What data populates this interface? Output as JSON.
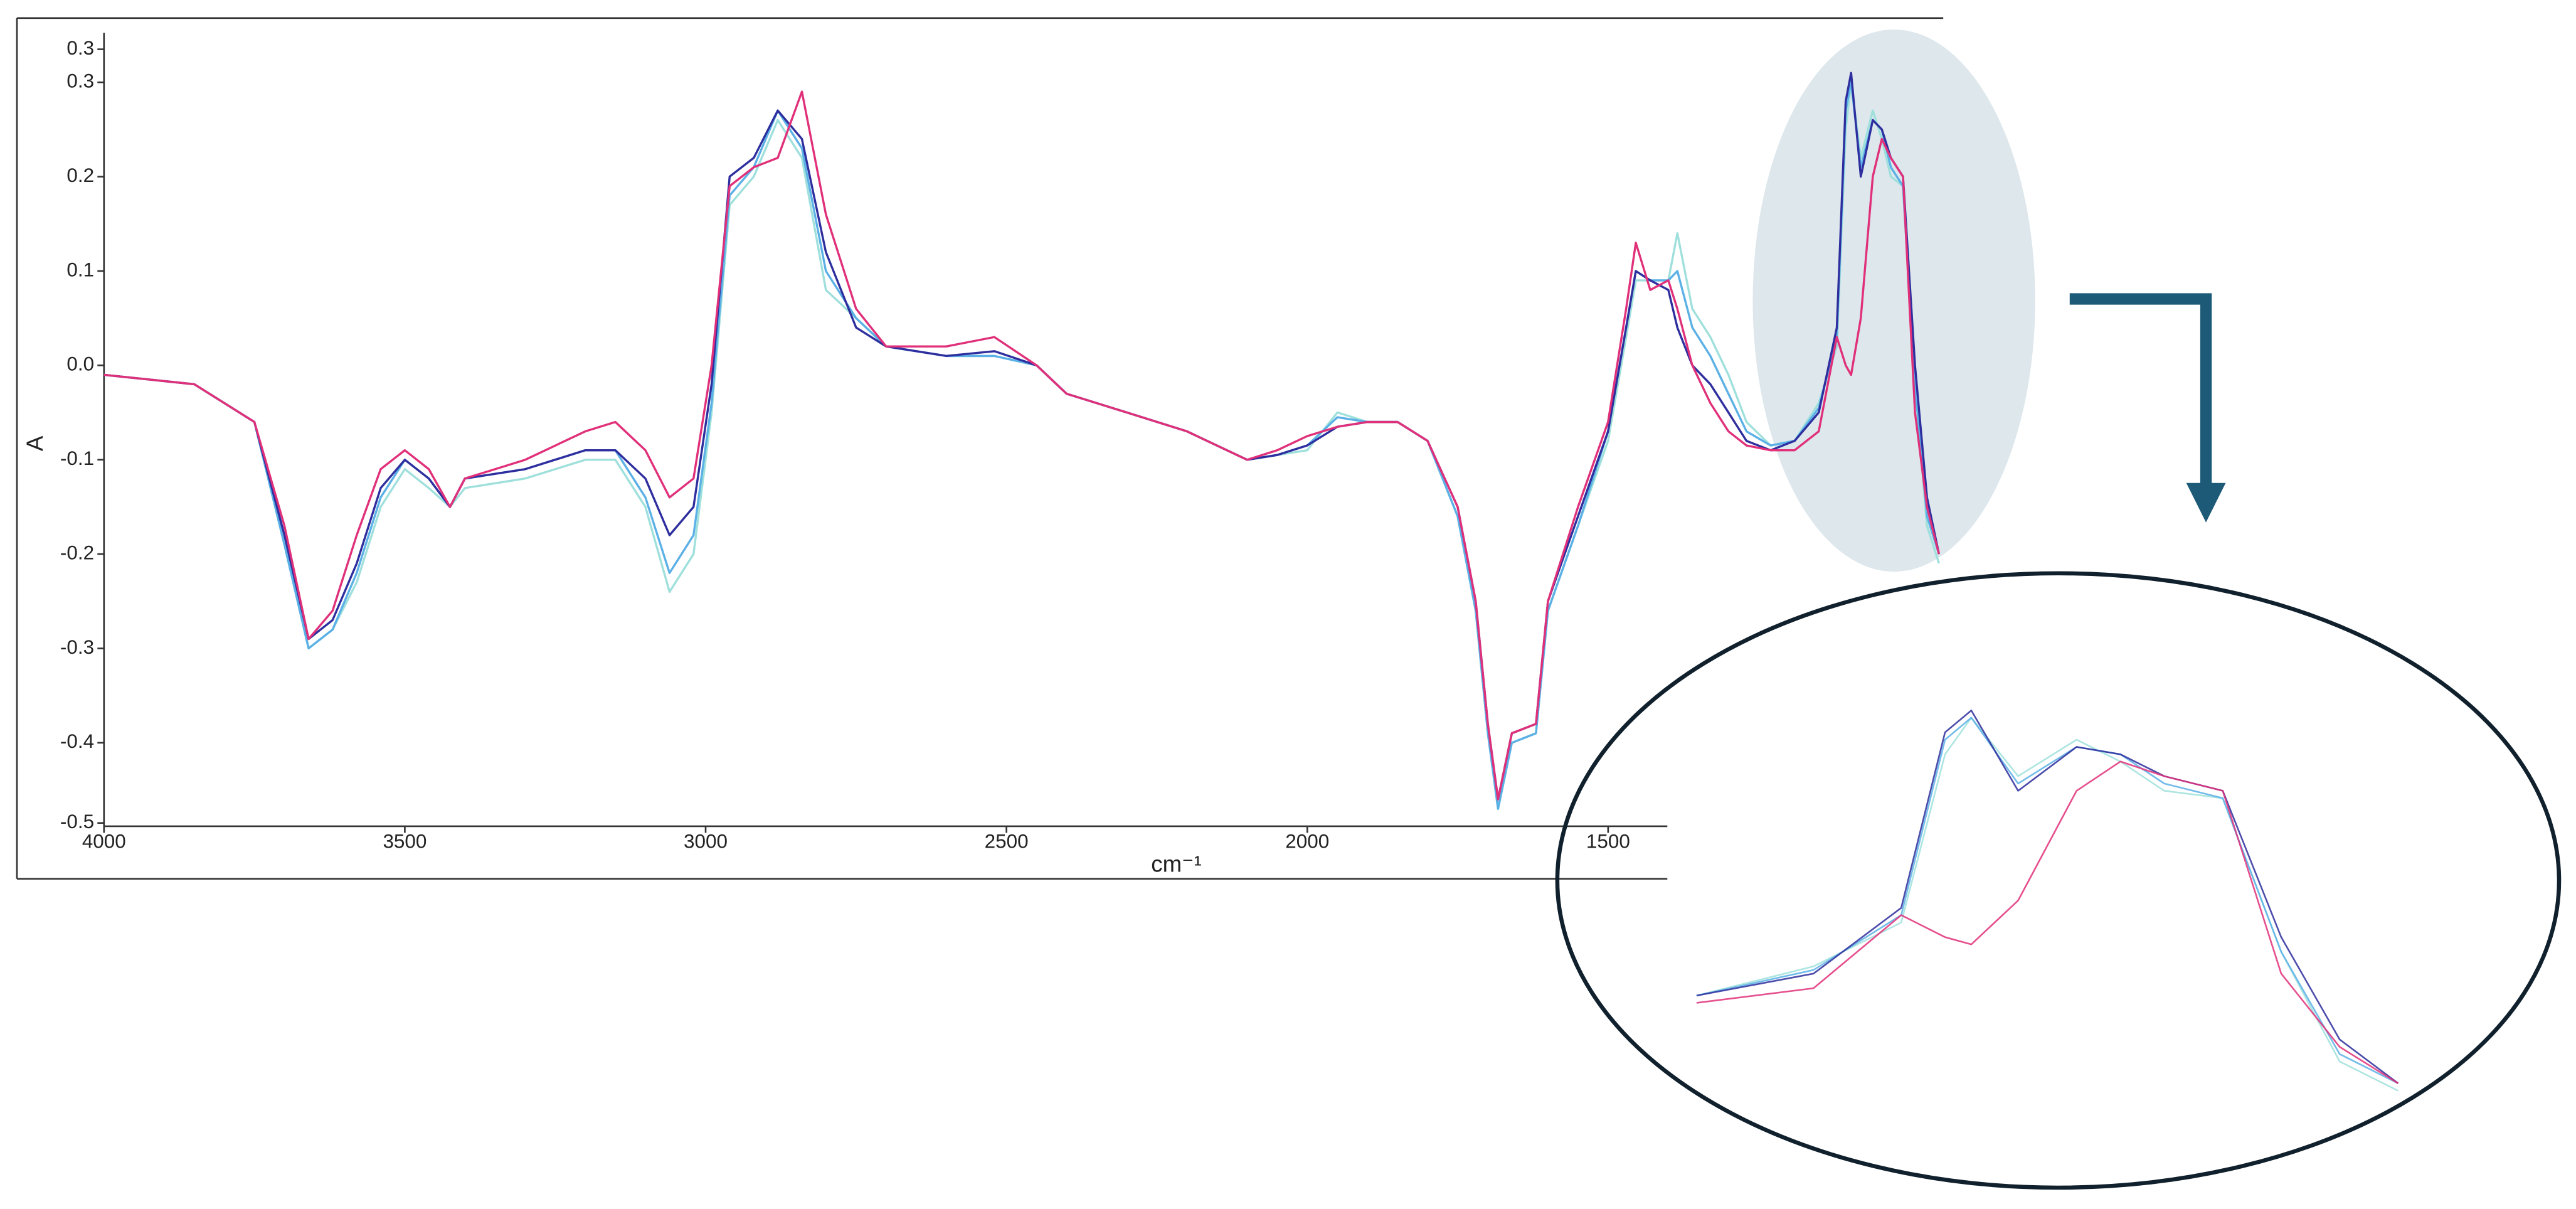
{
  "chart_data": {
    "type": "line",
    "y_label": "A",
    "x_label": "cm⁻¹",
    "xlim": [
      4000,
      943
    ],
    "xticks": [
      4000,
      3500,
      3000,
      2500,
      2000,
      1500
    ],
    "ylim": [
      -0.485,
      0.335
    ],
    "yticks": [
      {
        "value": 0.335,
        "label": "0.3"
      },
      0.3,
      0.2,
      0.1,
      {
        "value": 0,
        "label": "0.0"
      },
      -0.1,
      -0.2,
      -0.3,
      -0.4,
      {
        "value": -0.485,
        "label": "-0.5"
      }
    ],
    "x": [
      4000,
      3850,
      3750,
      3700,
      3660,
      3620,
      3580,
      3540,
      3500,
      3460,
      3425,
      3400,
      3300,
      3200,
      3150,
      3100,
      3060,
      3020,
      2990,
      2960,
      2920,
      2880,
      2840,
      2800,
      2750,
      2700,
      2600,
      2520,
      2450,
      2400,
      2300,
      2200,
      2100,
      2050,
      2000,
      1950,
      1900,
      1850,
      1800,
      1750,
      1720,
      1700,
      1683,
      1660,
      1620,
      1600,
      1550,
      1500,
      1470,
      1454,
      1430,
      1400,
      1385,
      1360,
      1330,
      1300,
      1270,
      1230,
      1190,
      1150,
      1120,
      1105,
      1096,
      1080,
      1060,
      1045,
      1030,
      1010,
      990,
      970,
      950
    ],
    "series": [
      {
        "color": "#9fe0dc",
        "values": [
          -0.01,
          -0.02,
          -0.06,
          -0.19,
          -0.3,
          -0.28,
          -0.23,
          -0.15,
          -0.11,
          -0.13,
          -0.15,
          -0.13,
          -0.12,
          -0.1,
          -0.1,
          -0.15,
          -0.24,
          -0.2,
          -0.05,
          0.17,
          0.2,
          0.26,
          0.22,
          0.08,
          0.05,
          0.02,
          0.01,
          0.01,
          0.0,
          -0.03,
          -0.05,
          -0.07,
          -0.1,
          -0.095,
          -0.09,
          -0.05,
          -0.06,
          -0.06,
          -0.08,
          -0.16,
          -0.26,
          -0.39,
          -0.47,
          -0.4,
          -0.39,
          -0.26,
          -0.17,
          -0.08,
          0.03,
          0.09,
          0.09,
          0.09,
          0.14,
          0.06,
          0.03,
          -0.01,
          -0.06,
          -0.085,
          -0.08,
          -0.04,
          0.02,
          0.25,
          0.3,
          0.22,
          0.27,
          0.24,
          0.2,
          0.19,
          -0.02,
          -0.17,
          -0.21
        ]
      },
      {
        "color": "#5bb0e6",
        "values": [
          -0.01,
          -0.02,
          -0.06,
          -0.19,
          -0.3,
          -0.28,
          -0.22,
          -0.14,
          -0.1,
          -0.12,
          -0.15,
          -0.12,
          -0.11,
          -0.09,
          -0.09,
          -0.14,
          -0.22,
          -0.18,
          -0.04,
          0.18,
          0.21,
          0.27,
          0.23,
          0.1,
          0.05,
          0.02,
          0.01,
          0.01,
          0.0,
          -0.03,
          -0.05,
          -0.07,
          -0.1,
          -0.095,
          -0.085,
          -0.055,
          -0.06,
          -0.06,
          -0.08,
          -0.16,
          -0.26,
          -0.39,
          -0.47,
          -0.4,
          -0.39,
          -0.26,
          -0.17,
          -0.07,
          0.04,
          0.1,
          0.09,
          0.09,
          0.1,
          0.04,
          0.01,
          -0.03,
          -0.07,
          -0.085,
          -0.08,
          -0.045,
          0.03,
          0.27,
          0.3,
          0.21,
          0.26,
          0.25,
          0.21,
          0.19,
          -0.02,
          -0.16,
          -0.2
        ]
      },
      {
        "color": "#2e2e9e",
        "values": [
          -0.01,
          -0.02,
          -0.06,
          -0.18,
          -0.29,
          -0.27,
          -0.21,
          -0.13,
          -0.1,
          -0.12,
          -0.15,
          -0.12,
          -0.11,
          -0.09,
          -0.09,
          -0.12,
          -0.18,
          -0.15,
          -0.02,
          0.2,
          0.22,
          0.27,
          0.24,
          0.12,
          0.04,
          0.02,
          0.01,
          0.015,
          0.0,
          -0.03,
          -0.05,
          -0.07,
          -0.1,
          -0.095,
          -0.085,
          -0.065,
          -0.06,
          -0.06,
          -0.08,
          -0.15,
          -0.25,
          -0.38,
          -0.46,
          -0.39,
          -0.38,
          -0.25,
          -0.16,
          -0.07,
          0.04,
          0.1,
          0.09,
          0.08,
          0.04,
          0.0,
          -0.02,
          -0.05,
          -0.08,
          -0.09,
          -0.08,
          -0.05,
          0.04,
          0.28,
          0.31,
          0.2,
          0.26,
          0.25,
          0.22,
          0.2,
          0.0,
          -0.14,
          -0.2
        ]
      },
      {
        "color": "#e0307a",
        "values": [
          -0.01,
          -0.02,
          -0.06,
          -0.17,
          -0.29,
          -0.26,
          -0.18,
          -0.11,
          -0.09,
          -0.11,
          -0.15,
          -0.12,
          -0.1,
          -0.07,
          -0.06,
          -0.09,
          -0.14,
          -0.12,
          0.0,
          0.19,
          0.21,
          0.22,
          0.29,
          0.16,
          0.06,
          0.02,
          0.02,
          0.03,
          0.0,
          -0.03,
          -0.05,
          -0.07,
          -0.1,
          -0.09,
          -0.075,
          -0.065,
          -0.06,
          -0.06,
          -0.08,
          -0.15,
          -0.25,
          -0.38,
          -0.46,
          -0.39,
          -0.38,
          -0.25,
          -0.15,
          -0.06,
          0.06,
          0.13,
          0.08,
          0.09,
          0.06,
          0.0,
          -0.04,
          -0.07,
          -0.085,
          -0.09,
          -0.09,
          -0.07,
          0.03,
          0.0,
          -0.01,
          0.05,
          0.2,
          0.24,
          0.22,
          0.2,
          -0.05,
          -0.15,
          -0.2
        ]
      }
    ]
  }
}
